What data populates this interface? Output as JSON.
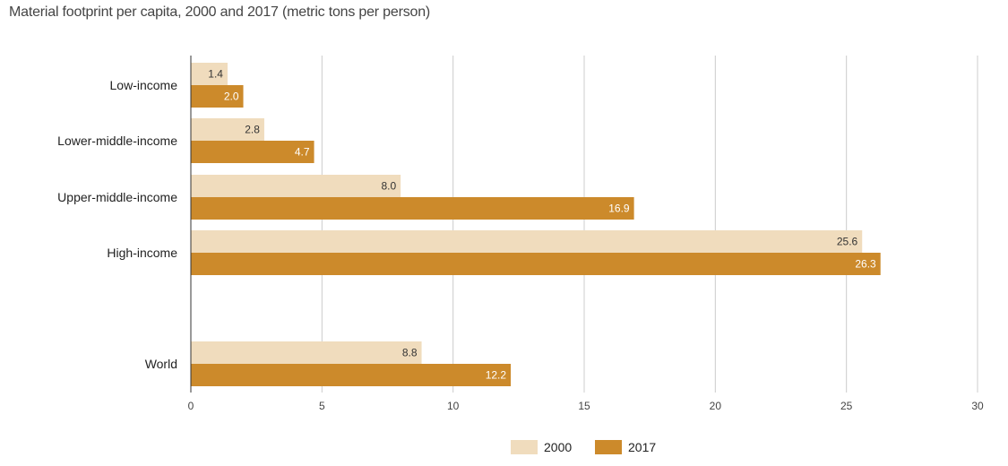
{
  "chart_data": {
    "type": "bar",
    "orientation": "horizontal",
    "title": "Material footprint per capita, 2000 and 2017 (metric tons per person)",
    "categories": [
      "Low-income",
      "Lower-middle-income",
      "Upper-middle-income",
      "High-income",
      "World"
    ],
    "series": [
      {
        "name": "2000",
        "values": [
          1.4,
          2.8,
          8.0,
          25.6,
          8.8
        ],
        "labels": [
          "1.4",
          "2.8",
          "8.0",
          "25.6",
          "8.8"
        ],
        "color": "#f0dcbd",
        "label_color": "#333333"
      },
      {
        "name": "2017",
        "values": [
          2.0,
          4.7,
          16.9,
          26.3,
          12.2
        ],
        "labels": [
          "2.0",
          "4.7",
          "16.9",
          "26.3",
          "12.2"
        ],
        "color": "#cc8a2b",
        "label_color": "#ffffff"
      }
    ],
    "xlim": [
      0,
      30
    ],
    "xticks": [
      0,
      5,
      10,
      15,
      20,
      25,
      30
    ],
    "xtick_labels": [
      "0",
      "5",
      "10",
      "15",
      "20",
      "25",
      "30"
    ],
    "xlabel": "",
    "ylabel": "",
    "grid": "vertical",
    "legend_position": "bottom-center",
    "colors": {
      "gridline": "#cccccc",
      "axis": "#333333"
    }
  }
}
